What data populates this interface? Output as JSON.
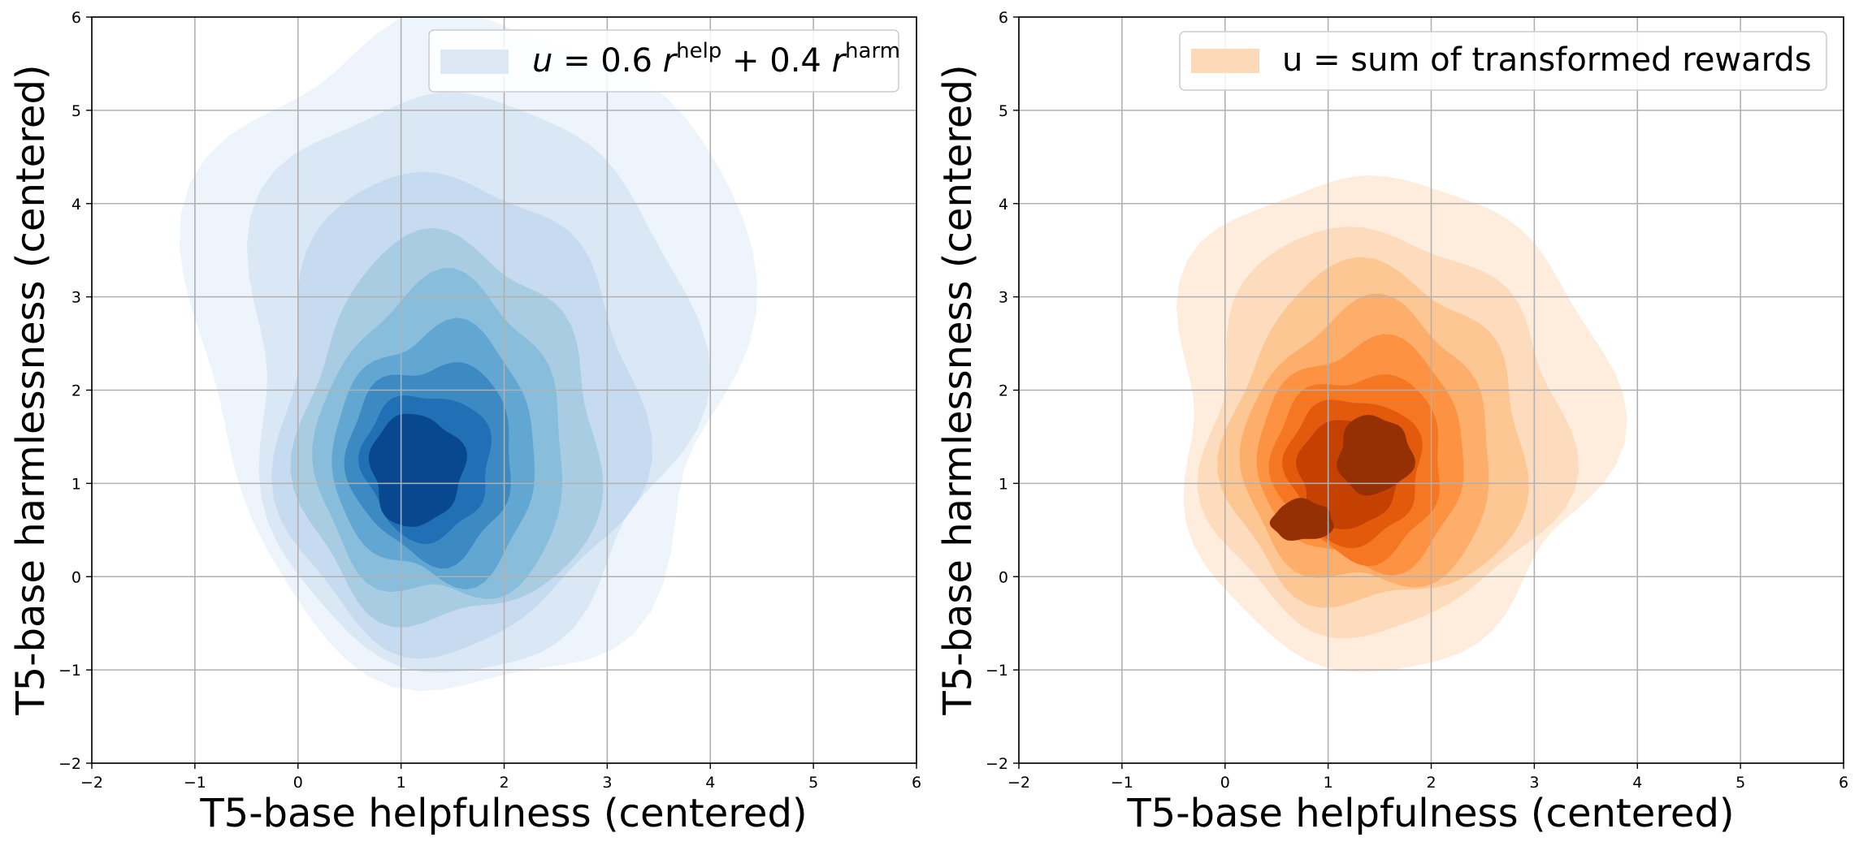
{
  "chart_data": [
    {
      "type": "kde-contour",
      "xlabel": "T5-base helpfulness (centered)",
      "ylabel": "T5-base harmlessness (centered)",
      "xlim": [
        -2,
        6
      ],
      "ylim": [
        -2,
        6
      ],
      "xticks": [
        "−2",
        "−1",
        "0",
        "1",
        "2",
        "3",
        "4",
        "5",
        "6"
      ],
      "yticks": [
        "−2",
        "−1",
        "0",
        "1",
        "2",
        "3",
        "4",
        "5",
        "6"
      ],
      "grid": true,
      "legend": {
        "position": "top-right",
        "label_parts": {
          "lhs": "u = 0.6",
          "sup1": "help",
          "mid": " + 0.4",
          "sup2": "harm",
          "var": "r"
        },
        "color": "#dce9f5"
      },
      "colors": [
        "#eef4fb",
        "#dae7f4",
        "#c6dbef",
        "#a8cde3",
        "#88bedc",
        "#62a6d2",
        "#3d8ac3",
        "#2170b5",
        "#08488e"
      ],
      "levels": [
        {
          "cx": 1.65,
          "cy": 2.5,
          "rx": 2.65,
          "ry": 3.6
        },
        {
          "cx": 1.6,
          "cy": 2.15,
          "rx": 2.15,
          "ry": 3.1
        },
        {
          "cx": 1.5,
          "cy": 1.75,
          "rx": 1.75,
          "ry": 2.55
        },
        {
          "cx": 1.45,
          "cy": 1.5,
          "rx": 1.45,
          "ry": 2.05
        },
        {
          "cx": 1.4,
          "cy": 1.4,
          "rx": 1.2,
          "ry": 1.7
        },
        {
          "cx": 1.35,
          "cy": 1.3,
          "rx": 0.98,
          "ry": 1.35
        },
        {
          "cx": 1.3,
          "cy": 1.25,
          "rx": 0.8,
          "ry": 1.05
        },
        {
          "cx": 1.25,
          "cy": 1.2,
          "rx": 0.62,
          "ry": 0.78
        },
        {
          "cx": 1.15,
          "cy": 1.15,
          "rx": 0.45,
          "ry": 0.6
        }
      ],
      "mode": {
        "x": 1.15,
        "y": 1.15
      }
    },
    {
      "type": "kde-contour",
      "xlabel": "T5-base helpfulness (centered)",
      "ylabel": "T5-base harmlessness (centered)",
      "xlim": [
        -2,
        6
      ],
      "ylim": [
        -2,
        6
      ],
      "xticks": [
        "−2",
        "−1",
        "0",
        "1",
        "2",
        "3",
        "4",
        "5",
        "6"
      ],
      "yticks": [
        "−2",
        "−1",
        "0",
        "1",
        "2",
        "3",
        "4",
        "5",
        "6"
      ],
      "grid": true,
      "legend": {
        "position": "top-right",
        "label": "u = sum of transformed rewards",
        "color": "#fdd9b8"
      },
      "colors": [
        "#feeddc",
        "#fddbbd",
        "#fdc793",
        "#fdae6b",
        "#fd9243",
        "#f57722",
        "#e45a0d",
        "#c54102",
        "#943003"
      ],
      "levels": [
        {
          "cx": 1.55,
          "cy": 1.7,
          "rx": 2.1,
          "ry": 2.65
        },
        {
          "cx": 1.5,
          "cy": 1.55,
          "rx": 1.75,
          "ry": 2.15
        },
        {
          "cx": 1.45,
          "cy": 1.45,
          "rx": 1.45,
          "ry": 1.8
        },
        {
          "cx": 1.4,
          "cy": 1.35,
          "rx": 1.2,
          "ry": 1.5
        },
        {
          "cx": 1.35,
          "cy": 1.3,
          "rx": 1.0,
          "ry": 1.2
        },
        {
          "cx": 1.3,
          "cy": 1.2,
          "rx": 0.82,
          "ry": 0.98
        },
        {
          "cx": 1.25,
          "cy": 1.15,
          "rx": 0.65,
          "ry": 0.78
        },
        {
          "cx": 1.2,
          "cy": 1.1,
          "rx": 0.5,
          "ry": 0.58
        }
      ],
      "peaks": [
        {
          "x": 1.45,
          "y": 1.3,
          "rx": 0.36,
          "ry": 0.42
        },
        {
          "x": 0.75,
          "y": 0.6,
          "rx": 0.3,
          "ry": 0.22
        }
      ]
    }
  ]
}
